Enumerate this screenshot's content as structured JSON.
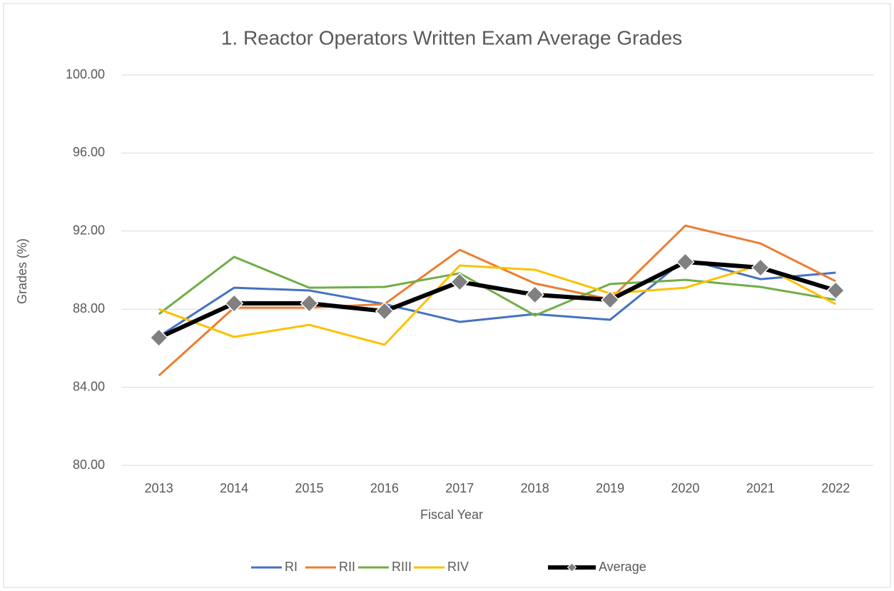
{
  "chart_data": {
    "type": "line",
    "title": "1. Reactor Operators Written Exam Average Grades",
    "x_label": "Fiscal Year",
    "y_label": "Grades (%)",
    "categories": [
      "2013",
      "2014",
      "2015",
      "2016",
      "2017",
      "2018",
      "2019",
      "2020",
      "2021",
      "2022"
    ],
    "series": [
      {
        "name": "RI",
        "color": "#4472c4",
        "values": [
          86.6,
          89.1,
          88.96,
          88.26,
          87.35,
          87.75,
          87.46,
          90.57,
          89.54,
          89.87
        ]
      },
      {
        "name": "RII",
        "color": "#ed7d31",
        "values": [
          84.6,
          88.08,
          88.08,
          88.26,
          91.04,
          89.32,
          88.5,
          92.28,
          91.37,
          89.43
        ]
      },
      {
        "name": "RIII",
        "color": "#70ad47",
        "values": [
          87.75,
          90.68,
          89.1,
          89.14,
          89.84,
          87.68,
          89.29,
          89.5,
          89.14,
          88.48
        ]
      },
      {
        "name": "RIV",
        "color": "#ffc000",
        "values": [
          88.0,
          86.58,
          87.2,
          86.18,
          90.24,
          90.02,
          88.81,
          89.1,
          90.27,
          88.26
        ]
      },
      {
        "name": "Average",
        "color": "#000000",
        "marker": "diamond",
        "marker_color": "#808080",
        "values": [
          86.54,
          88.3,
          88.3,
          87.9,
          89.4,
          88.74,
          88.48,
          90.42,
          90.13,
          88.96
        ]
      }
    ],
    "ylim": [
      80,
      100
    ],
    "yticks": [
      {
        "value": 80,
        "label": "80.00"
      },
      {
        "value": 84,
        "label": "84.00"
      },
      {
        "value": 88,
        "label": "88.00"
      },
      {
        "value": 92,
        "label": "92.00"
      },
      {
        "value": 96,
        "label": "96.00"
      },
      {
        "value": 100,
        "label": "100.00"
      }
    ],
    "grid": true,
    "legend": "bottom"
  }
}
